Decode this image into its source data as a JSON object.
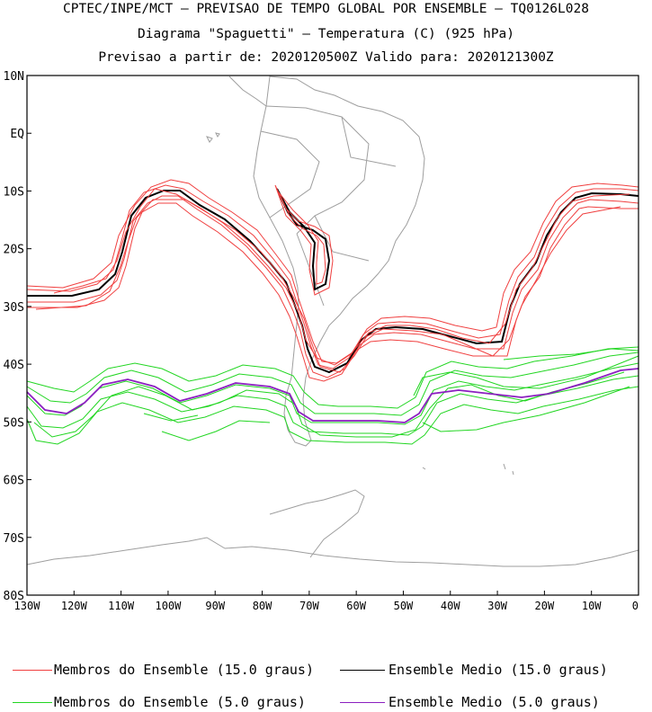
{
  "header": {
    "line1": "CPTEC/INPE/MCT — PREVISAO DE TEMPO GLOBAL POR ENSEMBLE — TQ0126L028",
    "line2": "Diagrama \"Spaguetti\" — Temperatura (C) (925 hPa)",
    "line3": "Previsao a partir de: 2020120500Z  Valido para: 2020121300Z"
  },
  "map": {
    "lon_range": [
      -130,
      0
    ],
    "lat_range": [
      -80,
      10
    ],
    "lat_ticks": [
      "10N",
      "EQ",
      "10S",
      "20S",
      "30S",
      "40S",
      "50S",
      "60S",
      "70S",
      "80S"
    ],
    "lon_ticks": [
      "130W",
      "120W",
      "110W",
      "100W",
      "90W",
      "80W",
      "70W",
      "60W",
      "50W",
      "40W",
      "30W",
      "20W",
      "10W",
      "0"
    ],
    "grid": false
  },
  "legend": {
    "red_members": "Membros do Ensemble (15.0 graus)",
    "black_mean": "Ensemble Medio (15.0 graus)",
    "green_members": "Membros do Ensemble (5.0 graus)",
    "purple_mean": "Ensemble Medio (5.0 graus)"
  },
  "colors": {
    "members_15": "#f04040",
    "mean_15": "#000000",
    "members_5": "#22d622",
    "mean_5": "#8b1fc0",
    "coast": "#9e9e9e"
  }
}
